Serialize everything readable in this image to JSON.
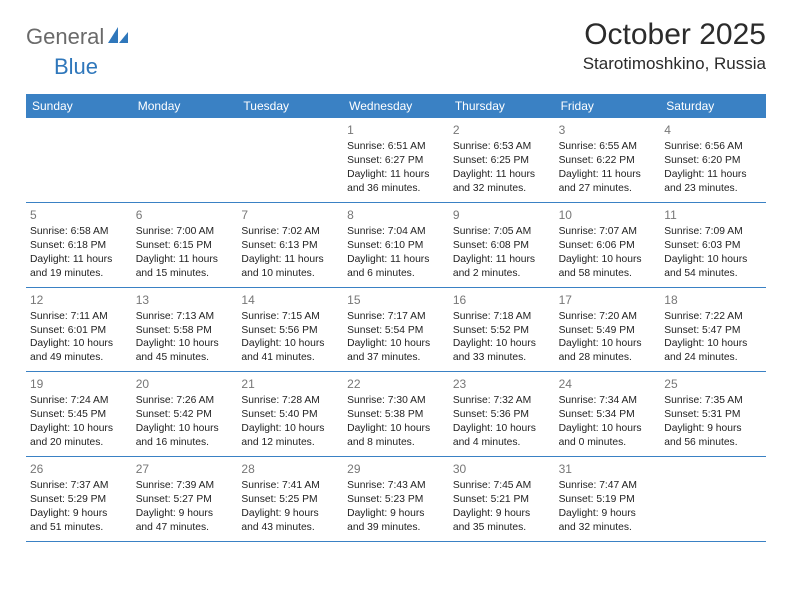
{
  "brand": {
    "name_part1": "General",
    "name_part2": "Blue",
    "accent_color": "#2f77bb",
    "text_color": "#6a6a6a"
  },
  "title": "October 2025",
  "location": "Starotimoshkino, Russia",
  "header_bg": "#3a81c4",
  "border_color": "#3a81c4",
  "weekdays": [
    "Sunday",
    "Monday",
    "Tuesday",
    "Wednesday",
    "Thursday",
    "Friday",
    "Saturday"
  ],
  "weeks": [
    [
      null,
      null,
      null,
      {
        "n": "1",
        "sr": "Sunrise: 6:51 AM",
        "ss": "Sunset: 6:27 PM",
        "d1": "Daylight: 11 hours",
        "d2": "and 36 minutes."
      },
      {
        "n": "2",
        "sr": "Sunrise: 6:53 AM",
        "ss": "Sunset: 6:25 PM",
        "d1": "Daylight: 11 hours",
        "d2": "and 32 minutes."
      },
      {
        "n": "3",
        "sr": "Sunrise: 6:55 AM",
        "ss": "Sunset: 6:22 PM",
        "d1": "Daylight: 11 hours",
        "d2": "and 27 minutes."
      },
      {
        "n": "4",
        "sr": "Sunrise: 6:56 AM",
        "ss": "Sunset: 6:20 PM",
        "d1": "Daylight: 11 hours",
        "d2": "and 23 minutes."
      }
    ],
    [
      {
        "n": "5",
        "sr": "Sunrise: 6:58 AM",
        "ss": "Sunset: 6:18 PM",
        "d1": "Daylight: 11 hours",
        "d2": "and 19 minutes."
      },
      {
        "n": "6",
        "sr": "Sunrise: 7:00 AM",
        "ss": "Sunset: 6:15 PM",
        "d1": "Daylight: 11 hours",
        "d2": "and 15 minutes."
      },
      {
        "n": "7",
        "sr": "Sunrise: 7:02 AM",
        "ss": "Sunset: 6:13 PM",
        "d1": "Daylight: 11 hours",
        "d2": "and 10 minutes."
      },
      {
        "n": "8",
        "sr": "Sunrise: 7:04 AM",
        "ss": "Sunset: 6:10 PM",
        "d1": "Daylight: 11 hours",
        "d2": "and 6 minutes."
      },
      {
        "n": "9",
        "sr": "Sunrise: 7:05 AM",
        "ss": "Sunset: 6:08 PM",
        "d1": "Daylight: 11 hours",
        "d2": "and 2 minutes."
      },
      {
        "n": "10",
        "sr": "Sunrise: 7:07 AM",
        "ss": "Sunset: 6:06 PM",
        "d1": "Daylight: 10 hours",
        "d2": "and 58 minutes."
      },
      {
        "n": "11",
        "sr": "Sunrise: 7:09 AM",
        "ss": "Sunset: 6:03 PM",
        "d1": "Daylight: 10 hours",
        "d2": "and 54 minutes."
      }
    ],
    [
      {
        "n": "12",
        "sr": "Sunrise: 7:11 AM",
        "ss": "Sunset: 6:01 PM",
        "d1": "Daylight: 10 hours",
        "d2": "and 49 minutes."
      },
      {
        "n": "13",
        "sr": "Sunrise: 7:13 AM",
        "ss": "Sunset: 5:58 PM",
        "d1": "Daylight: 10 hours",
        "d2": "and 45 minutes."
      },
      {
        "n": "14",
        "sr": "Sunrise: 7:15 AM",
        "ss": "Sunset: 5:56 PM",
        "d1": "Daylight: 10 hours",
        "d2": "and 41 minutes."
      },
      {
        "n": "15",
        "sr": "Sunrise: 7:17 AM",
        "ss": "Sunset: 5:54 PM",
        "d1": "Daylight: 10 hours",
        "d2": "and 37 minutes."
      },
      {
        "n": "16",
        "sr": "Sunrise: 7:18 AM",
        "ss": "Sunset: 5:52 PM",
        "d1": "Daylight: 10 hours",
        "d2": "and 33 minutes."
      },
      {
        "n": "17",
        "sr": "Sunrise: 7:20 AM",
        "ss": "Sunset: 5:49 PM",
        "d1": "Daylight: 10 hours",
        "d2": "and 28 minutes."
      },
      {
        "n": "18",
        "sr": "Sunrise: 7:22 AM",
        "ss": "Sunset: 5:47 PM",
        "d1": "Daylight: 10 hours",
        "d2": "and 24 minutes."
      }
    ],
    [
      {
        "n": "19",
        "sr": "Sunrise: 7:24 AM",
        "ss": "Sunset: 5:45 PM",
        "d1": "Daylight: 10 hours",
        "d2": "and 20 minutes."
      },
      {
        "n": "20",
        "sr": "Sunrise: 7:26 AM",
        "ss": "Sunset: 5:42 PM",
        "d1": "Daylight: 10 hours",
        "d2": "and 16 minutes."
      },
      {
        "n": "21",
        "sr": "Sunrise: 7:28 AM",
        "ss": "Sunset: 5:40 PM",
        "d1": "Daylight: 10 hours",
        "d2": "and 12 minutes."
      },
      {
        "n": "22",
        "sr": "Sunrise: 7:30 AM",
        "ss": "Sunset: 5:38 PM",
        "d1": "Daylight: 10 hours",
        "d2": "and 8 minutes."
      },
      {
        "n": "23",
        "sr": "Sunrise: 7:32 AM",
        "ss": "Sunset: 5:36 PM",
        "d1": "Daylight: 10 hours",
        "d2": "and 4 minutes."
      },
      {
        "n": "24",
        "sr": "Sunrise: 7:34 AM",
        "ss": "Sunset: 5:34 PM",
        "d1": "Daylight: 10 hours",
        "d2": "and 0 minutes."
      },
      {
        "n": "25",
        "sr": "Sunrise: 7:35 AM",
        "ss": "Sunset: 5:31 PM",
        "d1": "Daylight: 9 hours",
        "d2": "and 56 minutes."
      }
    ],
    [
      {
        "n": "26",
        "sr": "Sunrise: 7:37 AM",
        "ss": "Sunset: 5:29 PM",
        "d1": "Daylight: 9 hours",
        "d2": "and 51 minutes."
      },
      {
        "n": "27",
        "sr": "Sunrise: 7:39 AM",
        "ss": "Sunset: 5:27 PM",
        "d1": "Daylight: 9 hours",
        "d2": "and 47 minutes."
      },
      {
        "n": "28",
        "sr": "Sunrise: 7:41 AM",
        "ss": "Sunset: 5:25 PM",
        "d1": "Daylight: 9 hours",
        "d2": "and 43 minutes."
      },
      {
        "n": "29",
        "sr": "Sunrise: 7:43 AM",
        "ss": "Sunset: 5:23 PM",
        "d1": "Daylight: 9 hours",
        "d2": "and 39 minutes."
      },
      {
        "n": "30",
        "sr": "Sunrise: 7:45 AM",
        "ss": "Sunset: 5:21 PM",
        "d1": "Daylight: 9 hours",
        "d2": "and 35 minutes."
      },
      {
        "n": "31",
        "sr": "Sunrise: 7:47 AM",
        "ss": "Sunset: 5:19 PM",
        "d1": "Daylight: 9 hours",
        "d2": "and 32 minutes."
      },
      null
    ]
  ]
}
